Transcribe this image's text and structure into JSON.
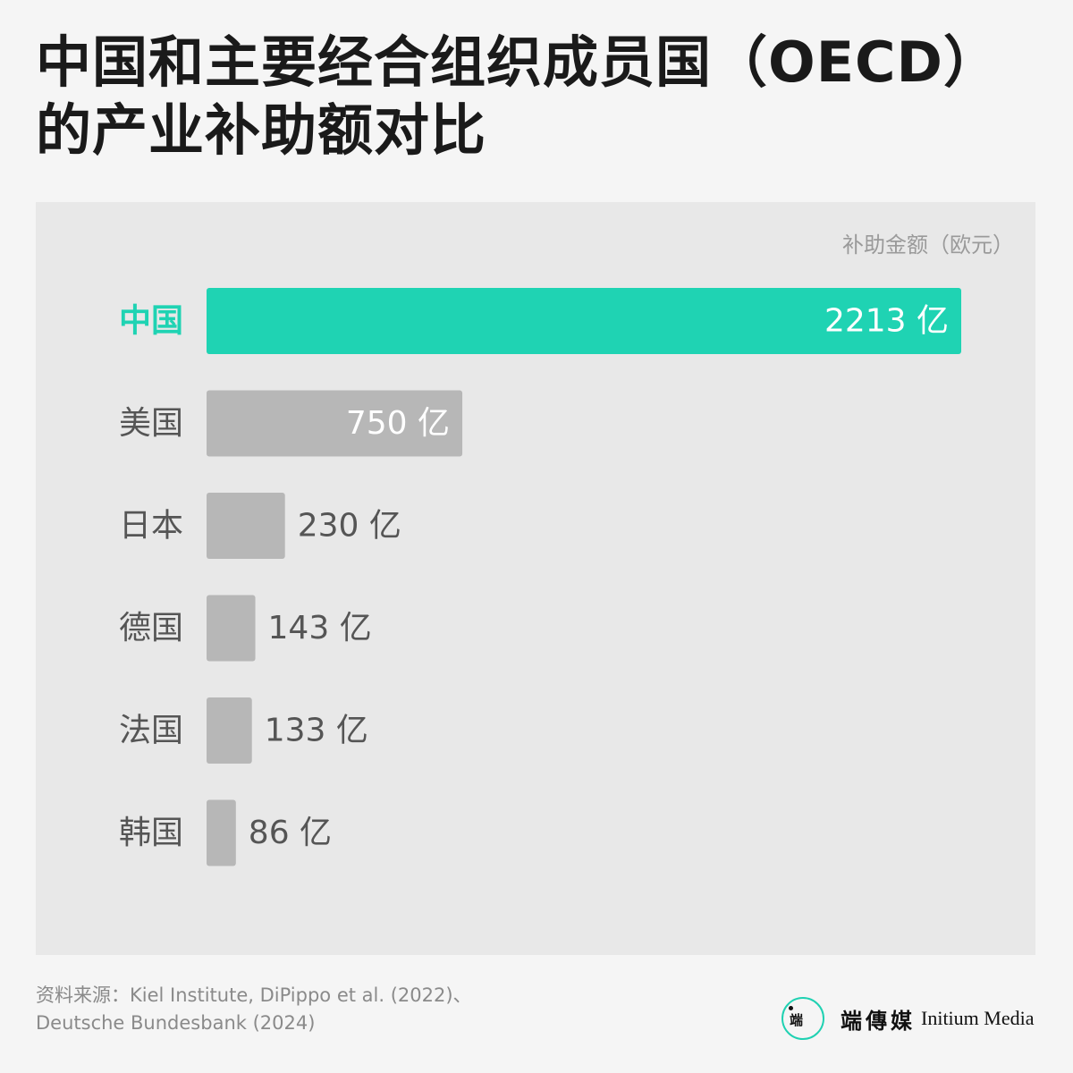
{
  "title": {
    "line1": "中国和主要经合组织成员国（OECD）",
    "line2": "的产业补助额对比"
  },
  "unit_label": "补助金额（欧元）",
  "chart_data": {
    "type": "bar",
    "orientation": "horizontal",
    "title": "中国和主要经合组织成员国（OECD）的产业补助额对比",
    "value_axis_label": "补助金额（欧元）",
    "categories": [
      "中国",
      "美国",
      "日本",
      "德国",
      "法国",
      "韩国"
    ],
    "values": [
      2213,
      750,
      230,
      143,
      133,
      86
    ],
    "value_labels": [
      "2213 亿",
      "750 亿",
      "230 亿",
      "143 亿",
      "133 亿",
      "86 亿"
    ],
    "unit": "亿欧元",
    "highlight_category": "中国",
    "colors": {
      "highlight": "#1fd3b3",
      "default": "#b7b7b7",
      "label_inside": "#ffffff",
      "label_outside": "#555555",
      "category_text": "#555555",
      "highlight_text": "#1fd3b3"
    },
    "grid": false,
    "legend": "none"
  },
  "source": {
    "line1": "资料来源：Kiel Institute, DiPippo et al. (2022)、",
    "line2": "Deutsche Bundesbank (2024)"
  },
  "brand": {
    "logo_icon": "initium-logo-icon",
    "name_cn": "端傳媒",
    "name_en": "Initium Media"
  }
}
